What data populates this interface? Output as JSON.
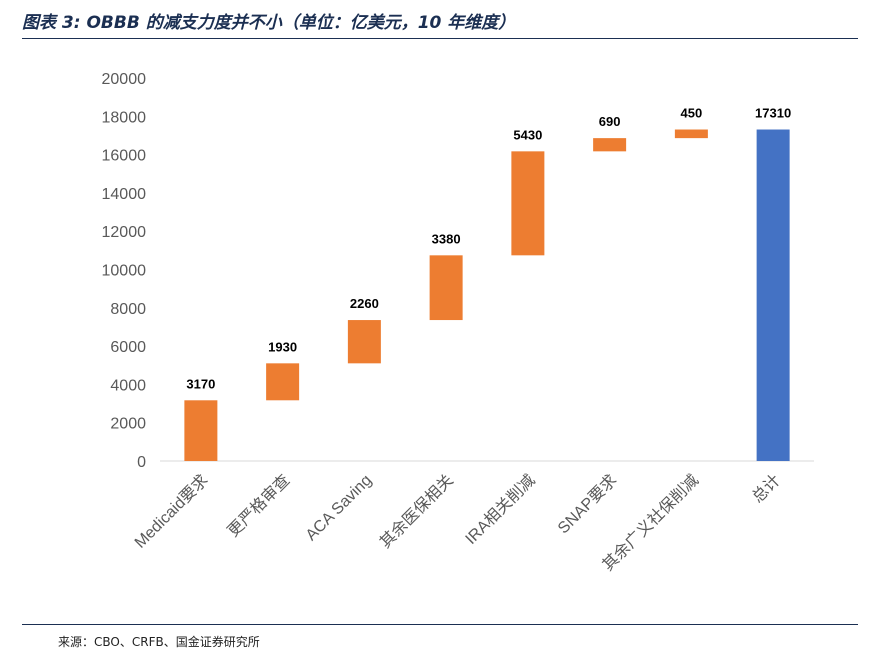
{
  "title": "图表 3: OBBB 的减支力度并不小（单位：亿美元，10 年维度）",
  "source": "来源：CBO、CRFB、国金证券研究所",
  "colors": {
    "increment": "#ED7D31",
    "total": "#4472C4",
    "axis": "#d9d9d9",
    "tick_text": "#595959",
    "rule": "#1b2f52"
  },
  "chart_data": {
    "type": "bar",
    "subtype": "waterfall",
    "categories": [
      "Medicaid要求",
      "更严格审查",
      "ACA Saving",
      "其余医保相关",
      "IRA相关削减",
      "SNAP要求",
      "其余广义社保削减",
      "总计"
    ],
    "values": [
      3170,
      1930,
      2260,
      3380,
      5430,
      690,
      450,
      17310
    ],
    "is_total": [
      false,
      false,
      false,
      false,
      false,
      false,
      false,
      true
    ],
    "data_labels": [
      "3170",
      "1930",
      "2260",
      "3380",
      "5430",
      "690",
      "450",
      "17310"
    ],
    "y_ticks": [
      "0",
      "2000",
      "4000",
      "6000",
      "8000",
      "10000",
      "12000",
      "14000",
      "16000",
      "18000",
      "20000"
    ],
    "ylim": [
      0,
      20000
    ],
    "grid": false,
    "legend": "none"
  }
}
